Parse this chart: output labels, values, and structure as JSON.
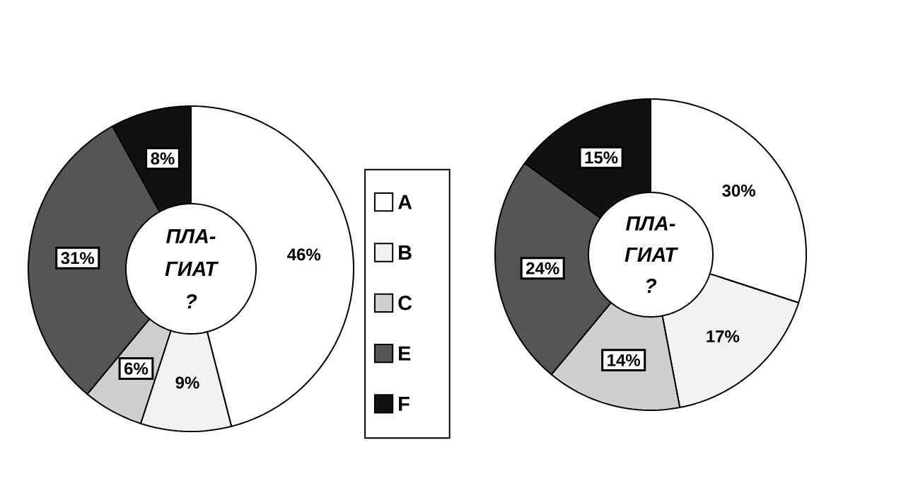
{
  "chart_data": [
    {
      "type": "donut",
      "categories": [
        "A",
        "B",
        "C",
        "E",
        "F"
      ],
      "values": [
        46,
        9,
        6,
        31,
        8
      ],
      "value_labels": [
        "46%",
        "9%",
        "6%",
        "31%",
        "8%"
      ],
      "colors": [
        "#ffffff",
        "#f2f2f2",
        "#cfcfcf",
        "#555555",
        "#111111"
      ],
      "annotations": [
        "ПЛА-",
        "ГИАТ",
        "?"
      ],
      "legend": "right"
    },
    {
      "type": "donut",
      "categories": [
        null,
        null,
        null,
        null,
        null
      ],
      "values": [
        30,
        17,
        14,
        24,
        15
      ],
      "value_labels": [
        "30%",
        "17%",
        "14%",
        "24%",
        "15%"
      ],
      "colors": [
        "#ffffff",
        "#f2f2f2",
        "#cfcfcf",
        "#555555",
        "#111111"
      ],
      "annotations": [
        "ПЛА-",
        "ГИАТ",
        "?"
      ]
    }
  ]
}
